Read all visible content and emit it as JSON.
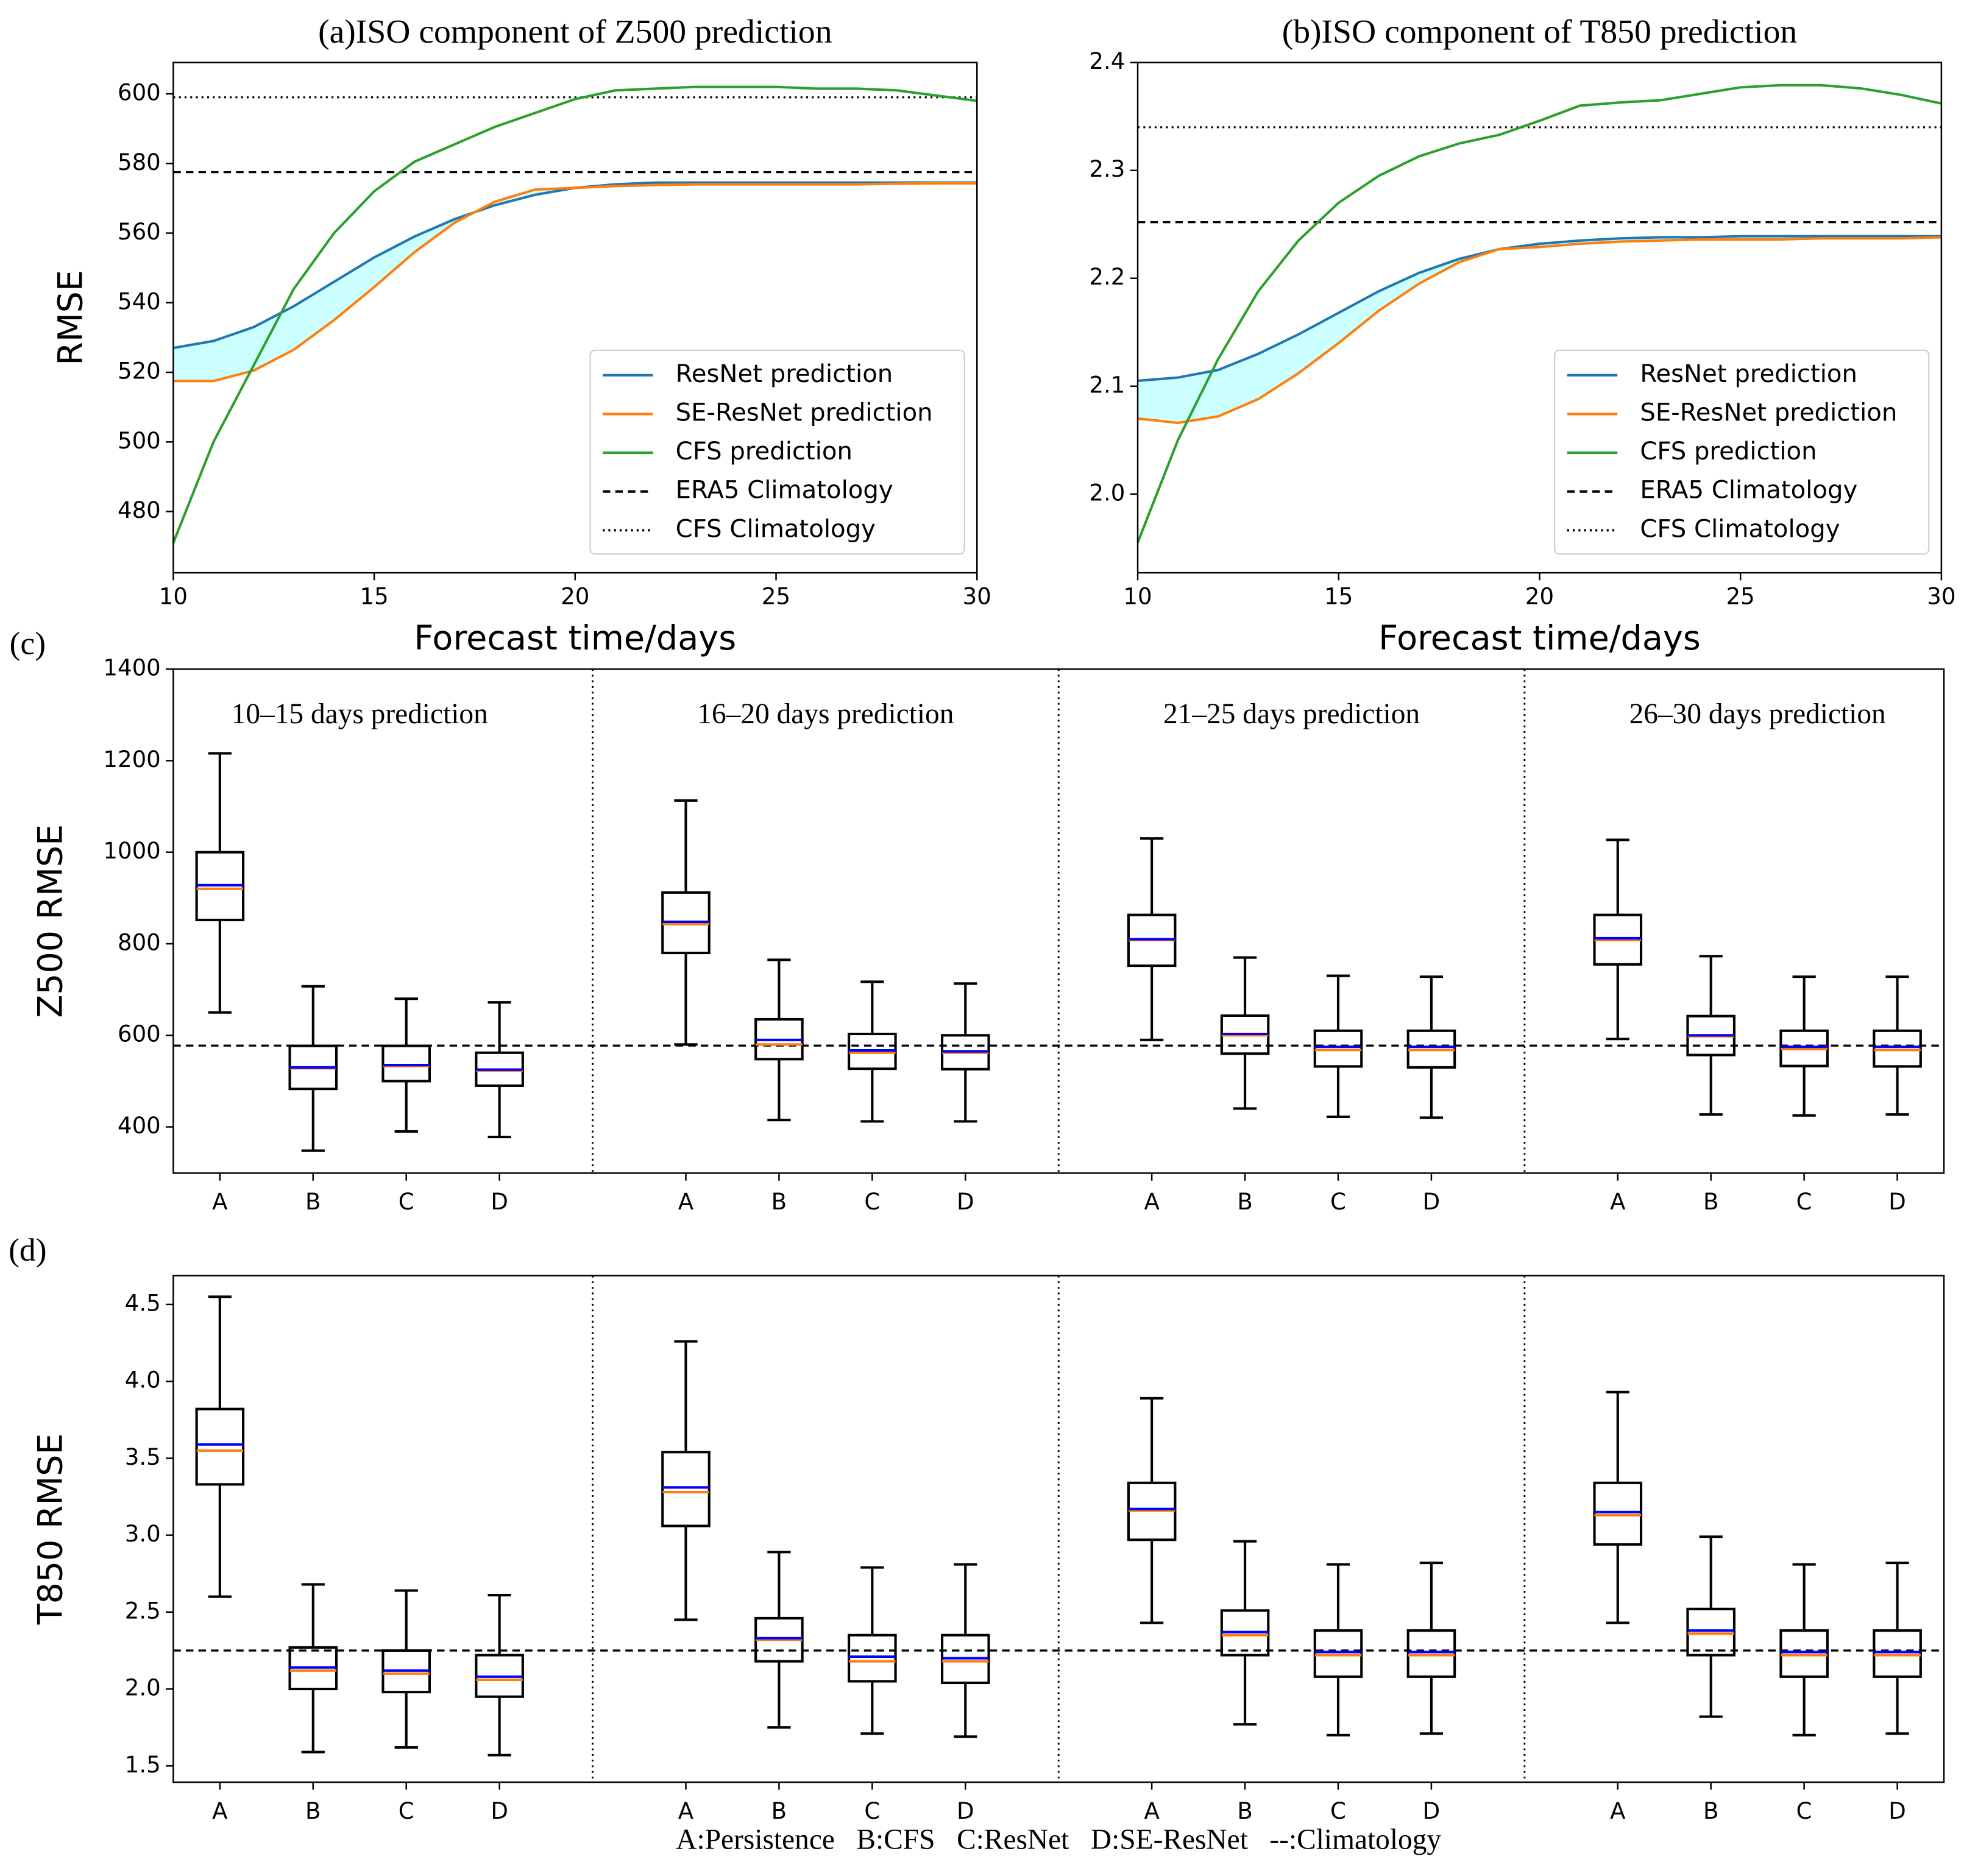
{
  "chart_data": [
    {
      "type": "line",
      "title": "(a)ISO component of Z500 prediction",
      "xlabel": "Forecast time/days",
      "ylabel": "RMSE",
      "x": [
        10,
        11,
        12,
        13,
        14,
        15,
        16,
        17,
        18,
        19,
        20,
        21,
        22,
        23,
        24,
        25,
        26,
        27,
        28,
        29,
        30
      ],
      "xlim": [
        10,
        30
      ],
      "xticks": [
        10,
        15,
        20,
        25,
        30
      ],
      "ylim": [
        462.4,
        609
      ],
      "yticks": [
        480,
        500,
        520,
        540,
        560,
        580,
        600
      ],
      "legend": "lower right",
      "fill_between_color": "#ccffff",
      "series": [
        {
          "name": "ResNet prediction",
          "color": "#1f77b4",
          "values": [
            527,
            529,
            533,
            539,
            546,
            553,
            559,
            564,
            568,
            571,
            573,
            574,
            574.5,
            574.5,
            574.5,
            574.5,
            574.5,
            574.5,
            574.5,
            574.5,
            574.5
          ]
        },
        {
          "name": "SE-ResNet prediction",
          "color": "#ff7f0e",
          "values": [
            517.5,
            517.5,
            520.5,
            526.5,
            535,
            544.5,
            554.5,
            563,
            569,
            572.5,
            573,
            573.5,
            573.8,
            574,
            574,
            574,
            574,
            574,
            574.2,
            574.3,
            574.3
          ]
        },
        {
          "name": "CFS prediction",
          "color": "#2ca02c",
          "values": [
            471,
            500,
            522,
            544,
            560,
            572,
            580.5,
            585.5,
            590.5,
            594.5,
            598.5,
            601,
            601.5,
            602,
            602,
            602,
            601.5,
            601.5,
            601,
            599.5,
            598
          ]
        }
      ],
      "hlines": [
        {
          "name": "ERA5 Climatology",
          "style": "dashed",
          "color": "#000000",
          "value": 577.5
        },
        {
          "name": "CFS Climatology",
          "style": "dotted",
          "color": "#000000",
          "value": 599
        }
      ]
    },
    {
      "type": "line",
      "title": "(b)ISO component of T850 prediction",
      "xlabel": "Forecast time/days",
      "x": [
        10,
        11,
        12,
        13,
        14,
        15,
        16,
        17,
        18,
        19,
        20,
        21,
        22,
        23,
        24,
        25,
        26,
        27,
        28,
        29,
        30
      ],
      "xlim": [
        10,
        30
      ],
      "xticks": [
        10,
        15,
        20,
        25,
        30
      ],
      "ylim": [
        1.927,
        2.4
      ],
      "yticks": [
        {
          "value": 2,
          "label": "2.0"
        },
        2.1,
        2.2,
        2.3,
        2.4
      ],
      "legend": "lower right",
      "fill_between_color": "#ccffff",
      "series": [
        {
          "name": "ResNet prediction",
          "color": "#1f77b4",
          "values": [
            2.105,
            2.108,
            2.115,
            2.13,
            2.148,
            2.168,
            2.188,
            2.205,
            2.218,
            2.227,
            2.232,
            2.235,
            2.237,
            2.238,
            2.238,
            2.239,
            2.239,
            2.239,
            2.239,
            2.239,
            2.239
          ]
        },
        {
          "name": "SE-ResNet prediction",
          "color": "#ff7f0e",
          "values": [
            2.07,
            2.066,
            2.072,
            2.088,
            2.112,
            2.14,
            2.17,
            2.195,
            2.215,
            2.227,
            2.229,
            2.232,
            2.234,
            2.235,
            2.236,
            2.236,
            2.236,
            2.237,
            2.237,
            2.237,
            2.238
          ]
        },
        {
          "name": "CFS prediction",
          "color": "#2ca02c",
          "values": [
            1.955,
            2.05,
            2.125,
            2.188,
            2.235,
            2.27,
            2.295,
            2.313,
            2.325,
            2.333,
            2.346,
            2.36,
            2.363,
            2.365,
            2.371,
            2.377,
            2.379,
            2.379,
            2.376,
            2.37,
            2.362
          ]
        }
      ],
      "hlines": [
        {
          "name": "ERA5 Climatology",
          "style": "dashed",
          "color": "#000000",
          "value": 2.252
        },
        {
          "name": "CFS Climatology",
          "style": "dotted",
          "color": "#000000",
          "value": 2.34
        }
      ]
    },
    {
      "type": "box",
      "panel_label": "(c)",
      "ylabel": "Z500 RMSE",
      "ylim": [
        299,
        1400
      ],
      "yticks": [
        400,
        600,
        800,
        1000,
        1200,
        1400
      ],
      "median_color": "#ff7f0e",
      "mean_color": "#0000ff",
      "hline": 577.5,
      "groups": [
        {
          "title": "10–15 days prediction",
          "categories": [
            "A",
            "B",
            "C",
            "D"
          ],
          "boxes": [
            {
              "whislo": 650,
              "q1": 852,
              "med": 920,
              "mean": 928,
              "q3": 1000,
              "whishi": 1216
            },
            {
              "whislo": 348,
              "q1": 483,
              "med": 528,
              "mean": 530,
              "q3": 577,
              "whishi": 707
            },
            {
              "whislo": 390,
              "q1": 500,
              "med": 533,
              "mean": 535,
              "q3": 577,
              "whishi": 680
            },
            {
              "whislo": 378,
              "q1": 490,
              "med": 523,
              "mean": 525,
              "q3": 562,
              "whishi": 672
            }
          ]
        },
        {
          "title": "16–20 days prediction",
          "categories": [
            "A",
            "B",
            "C",
            "D"
          ],
          "boxes": [
            {
              "whislo": 580,
              "q1": 780,
              "med": 843,
              "mean": 848,
              "q3": 912,
              "whishi": 1113
            },
            {
              "whislo": 415,
              "q1": 548,
              "med": 580,
              "mean": 590,
              "q3": 635,
              "whishi": 765
            },
            {
              "whislo": 412,
              "q1": 527,
              "med": 562,
              "mean": 567,
              "q3": 603,
              "whishi": 717
            },
            {
              "whislo": 412,
              "q1": 526,
              "med": 562,
              "mean": 565,
              "q3": 600,
              "whishi": 713
            }
          ]
        },
        {
          "title": "21–25 days prediction",
          "categories": [
            "A",
            "B",
            "C",
            "D"
          ],
          "boxes": [
            {
              "whislo": 590,
              "q1": 752,
              "med": 808,
              "mean": 810,
              "q3": 863,
              "whishi": 1030
            },
            {
              "whislo": 440,
              "q1": 560,
              "med": 600,
              "mean": 603,
              "q3": 643,
              "whishi": 770
            },
            {
              "whislo": 422,
              "q1": 532,
              "med": 568,
              "mean": 575,
              "q3": 610,
              "whishi": 730
            },
            {
              "whislo": 420,
              "q1": 530,
              "med": 568,
              "mean": 575,
              "q3": 610,
              "whishi": 728
            }
          ]
        },
        {
          "title": "26–30 days prediction",
          "categories": [
            "A",
            "B",
            "C",
            "D"
          ],
          "boxes": [
            {
              "whislo": 592,
              "q1": 755,
              "med": 808,
              "mean": 812,
              "q3": 863,
              "whishi": 1027
            },
            {
              "whislo": 427,
              "q1": 557,
              "med": 598,
              "mean": 600,
              "q3": 642,
              "whishi": 773
            },
            {
              "whislo": 425,
              "q1": 533,
              "med": 570,
              "mean": 575,
              "q3": 610,
              "whishi": 728
            },
            {
              "whislo": 427,
              "q1": 532,
              "med": 568,
              "mean": 575,
              "q3": 610,
              "whishi": 728
            }
          ]
        }
      ]
    },
    {
      "type": "box",
      "panel_label": "(d)",
      "ylabel": "T850 RMSE",
      "ylim": [
        1.394,
        4.687
      ],
      "yticks": [
        1.5,
        {
          "value": 2,
          "label": "2.0"
        },
        2.5,
        {
          "value": 3,
          "label": "3.0"
        },
        3.5,
        {
          "value": 4,
          "label": "4.0"
        },
        4.5
      ],
      "median_color": "#ff7f0e",
      "mean_color": "#0000ff",
      "hline": 2.25,
      "groups": [
        {
          "categories": [
            "A",
            "B",
            "C",
            "D"
          ],
          "boxes": [
            {
              "whislo": 2.6,
              "q1": 3.33,
              "med": 3.55,
              "mean": 3.59,
              "q3": 3.82,
              "whishi": 4.55
            },
            {
              "whislo": 1.59,
              "q1": 2.0,
              "med": 2.12,
              "mean": 2.14,
              "q3": 2.27,
              "whishi": 2.68
            },
            {
              "whislo": 1.62,
              "q1": 1.98,
              "med": 2.1,
              "mean": 2.12,
              "q3": 2.25,
              "whishi": 2.64
            },
            {
              "whislo": 1.57,
              "q1": 1.95,
              "med": 2.06,
              "mean": 2.08,
              "q3": 2.22,
              "whishi": 2.61
            }
          ]
        },
        {
          "categories": [
            "A",
            "B",
            "C",
            "D"
          ],
          "boxes": [
            {
              "whislo": 2.45,
              "q1": 3.06,
              "med": 3.28,
              "mean": 3.31,
              "q3": 3.54,
              "whishi": 4.26
            },
            {
              "whislo": 1.75,
              "q1": 2.18,
              "med": 2.32,
              "mean": 2.33,
              "q3": 2.46,
              "whishi": 2.89
            },
            {
              "whislo": 1.71,
              "q1": 2.05,
              "med": 2.18,
              "mean": 2.21,
              "q3": 2.35,
              "whishi": 2.79
            },
            {
              "whislo": 1.69,
              "q1": 2.04,
              "med": 2.18,
              "mean": 2.2,
              "q3": 2.35,
              "whishi": 2.81
            }
          ]
        },
        {
          "categories": [
            "A",
            "B",
            "C",
            "D"
          ],
          "boxes": [
            {
              "whislo": 2.43,
              "q1": 2.97,
              "med": 3.16,
              "mean": 3.17,
              "q3": 3.34,
              "whishi": 3.89
            },
            {
              "whislo": 1.77,
              "q1": 2.22,
              "med": 2.35,
              "mean": 2.37,
              "q3": 2.51,
              "whishi": 2.96
            },
            {
              "whislo": 1.7,
              "q1": 2.08,
              "med": 2.22,
              "mean": 2.24,
              "q3": 2.38,
              "whishi": 2.81
            },
            {
              "whislo": 1.71,
              "q1": 2.08,
              "med": 2.22,
              "mean": 2.24,
              "q3": 2.38,
              "whishi": 2.82
            }
          ]
        },
        {
          "categories": [
            "A",
            "B",
            "C",
            "D"
          ],
          "boxes": [
            {
              "whislo": 2.43,
              "q1": 2.94,
              "med": 3.13,
              "mean": 3.15,
              "q3": 3.34,
              "whishi": 3.93
            },
            {
              "whislo": 1.82,
              "q1": 2.22,
              "med": 2.36,
              "mean": 2.38,
              "q3": 2.52,
              "whishi": 2.99
            },
            {
              "whislo": 1.7,
              "q1": 2.08,
              "med": 2.22,
              "mean": 2.24,
              "q3": 2.38,
              "whishi": 2.81
            },
            {
              "whislo": 1.71,
              "q1": 2.08,
              "med": 2.22,
              "mean": 2.24,
              "q3": 2.38,
              "whishi": 2.82
            }
          ]
        }
      ]
    }
  ],
  "caption": "A:Persistence   B:CFS   C:ResNet   D:SE-ResNet   --:Climatology"
}
